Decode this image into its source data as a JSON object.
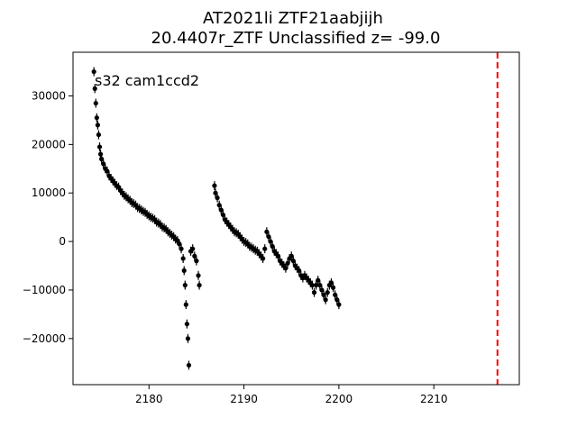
{
  "chart_data": {
    "type": "scatter",
    "title_line1": "AT2021li  ZTF21aabjijh",
    "title_line2": "20.4407r_ZTF Unclassified z= -99.0",
    "annotation": "s32 cam1ccd2",
    "xlabel": "",
    "ylabel": "",
    "xlim": [
      2172.0,
      2219.0
    ],
    "ylim": [
      -29500,
      39000
    ],
    "x_ticks": [
      2180,
      2190,
      2200,
      2210
    ],
    "y_ticks": [
      -20000,
      -10000,
      0,
      10000,
      20000,
      30000
    ],
    "grid": false,
    "vline": {
      "x": 2216.7,
      "color": "#ff0000",
      "style": "dashed"
    },
    "marker_color": "#000000",
    "series": [
      {
        "points": [
          [
            2174.2,
            35000
          ],
          [
            2174.3,
            31500
          ],
          [
            2174.4,
            28500
          ],
          [
            2174.5,
            25500
          ],
          [
            2174.6,
            24000
          ],
          [
            2174.7,
            22000
          ],
          [
            2174.8,
            19500
          ],
          [
            2174.9,
            18000
          ],
          [
            2175.0,
            17000
          ],
          [
            2175.2,
            16000
          ],
          [
            2175.4,
            15000
          ],
          [
            2175.6,
            14500
          ],
          [
            2175.8,
            13500
          ],
          [
            2176.0,
            13000
          ],
          [
            2176.2,
            12500
          ],
          [
            2176.4,
            12000
          ],
          [
            2176.6,
            11500
          ],
          [
            2176.8,
            11200
          ],
          [
            2177.0,
            10500
          ],
          [
            2177.2,
            10000
          ],
          [
            2177.4,
            9500
          ],
          [
            2177.6,
            9200
          ],
          [
            2177.8,
            8800
          ],
          [
            2178.0,
            8500
          ],
          [
            2178.2,
            8000
          ],
          [
            2178.4,
            7800
          ],
          [
            2178.6,
            7500
          ],
          [
            2178.8,
            7000
          ],
          [
            2179.0,
            6800
          ],
          [
            2179.2,
            6500
          ],
          [
            2179.4,
            6200
          ],
          [
            2179.6,
            6000
          ],
          [
            2179.8,
            5600
          ],
          [
            2180.0,
            5300
          ],
          [
            2180.2,
            5000
          ],
          [
            2180.4,
            4800
          ],
          [
            2180.6,
            4500
          ],
          [
            2180.8,
            4000
          ],
          [
            2181.0,
            3800
          ],
          [
            2181.2,
            3500
          ],
          [
            2181.4,
            3000
          ],
          [
            2181.6,
            2800
          ],
          [
            2181.8,
            2500
          ],
          [
            2182.0,
            2000
          ],
          [
            2182.2,
            1700
          ],
          [
            2182.4,
            1300
          ],
          [
            2182.6,
            1000
          ],
          [
            2182.8,
            500
          ],
          [
            2183.0,
            200
          ],
          [
            2183.2,
            -500
          ],
          [
            2183.4,
            -1500
          ],
          [
            2183.6,
            -3500
          ],
          [
            2183.7,
            -6000
          ],
          [
            2183.8,
            -9000
          ],
          [
            2183.9,
            -13000
          ],
          [
            2184.0,
            -17000
          ],
          [
            2184.1,
            -20000
          ],
          [
            2184.2,
            -25500
          ],
          [
            2184.4,
            -2000
          ],
          [
            2184.6,
            -1500
          ],
          [
            2184.8,
            -3000
          ],
          [
            2185.0,
            -4000
          ],
          [
            2185.2,
            -7000
          ],
          [
            2185.3,
            -9000
          ],
          [
            2186.9,
            11500
          ],
          [
            2187.0,
            10000
          ],
          [
            2187.2,
            9000
          ],
          [
            2187.4,
            7500
          ],
          [
            2187.6,
            6500
          ],
          [
            2187.8,
            5500
          ],
          [
            2188.0,
            4500
          ],
          [
            2188.2,
            4000
          ],
          [
            2188.4,
            3500
          ],
          [
            2188.6,
            3000
          ],
          [
            2188.8,
            2500
          ],
          [
            2189.0,
            2000
          ],
          [
            2189.2,
            1800
          ],
          [
            2189.4,
            1500
          ],
          [
            2189.6,
            1000
          ],
          [
            2189.8,
            500
          ],
          [
            2190.0,
            0
          ],
          [
            2190.2,
            -200
          ],
          [
            2190.4,
            -500
          ],
          [
            2190.6,
            -1000
          ],
          [
            2190.8,
            -1200
          ],
          [
            2191.0,
            -1500
          ],
          [
            2191.2,
            -1800
          ],
          [
            2191.4,
            -2000
          ],
          [
            2191.6,
            -2500
          ],
          [
            2191.8,
            -3000
          ],
          [
            2192.0,
            -3500
          ],
          [
            2192.2,
            -1500
          ],
          [
            2192.4,
            2000
          ],
          [
            2192.6,
            1000
          ],
          [
            2192.8,
            0
          ],
          [
            2193.0,
            -1000
          ],
          [
            2193.2,
            -2000
          ],
          [
            2193.4,
            -2500
          ],
          [
            2193.6,
            -3000
          ],
          [
            2193.8,
            -4000
          ],
          [
            2194.0,
            -4500
          ],
          [
            2194.2,
            -5000
          ],
          [
            2194.4,
            -5500
          ],
          [
            2194.6,
            -4500
          ],
          [
            2194.8,
            -3500
          ],
          [
            2195.0,
            -3000
          ],
          [
            2195.2,
            -4000
          ],
          [
            2195.4,
            -5000
          ],
          [
            2195.6,
            -5500
          ],
          [
            2195.8,
            -6000
          ],
          [
            2196.0,
            -7000
          ],
          [
            2196.2,
            -7500
          ],
          [
            2196.4,
            -7000
          ],
          [
            2196.6,
            -7500
          ],
          [
            2196.8,
            -8000
          ],
          [
            2197.0,
            -8500
          ],
          [
            2197.2,
            -9000
          ],
          [
            2197.4,
            -10500
          ],
          [
            2197.6,
            -9000
          ],
          [
            2197.8,
            -8000
          ],
          [
            2198.0,
            -9000
          ],
          [
            2198.2,
            -10000
          ],
          [
            2198.4,
            -11000
          ],
          [
            2198.6,
            -12000
          ],
          [
            2198.8,
            -10500
          ],
          [
            2199.0,
            -9000
          ],
          [
            2199.2,
            -8500
          ],
          [
            2199.4,
            -9500
          ],
          [
            2199.6,
            -11000
          ],
          [
            2199.8,
            -12000
          ],
          [
            2200.0,
            -13000
          ]
        ]
      }
    ]
  }
}
